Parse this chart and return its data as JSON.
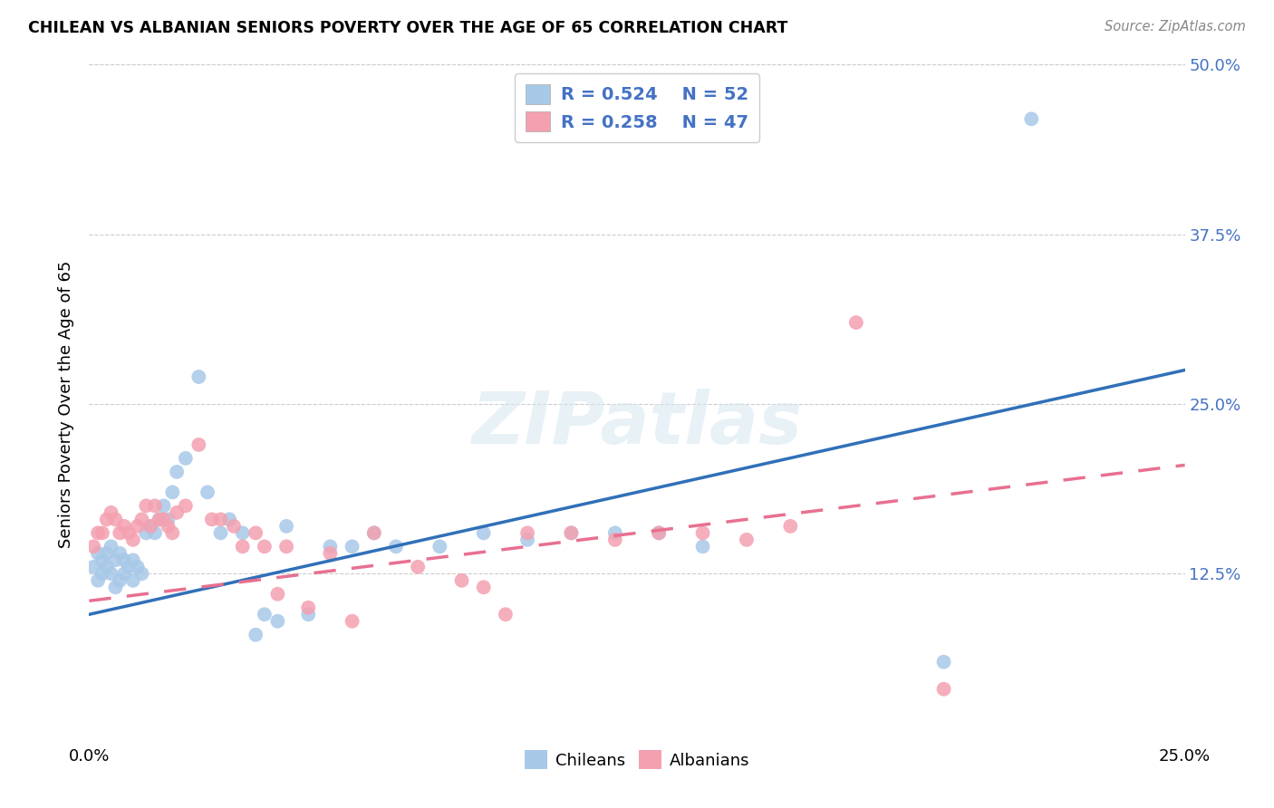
{
  "title": "CHILEAN VS ALBANIAN SENIORS POVERTY OVER THE AGE OF 65 CORRELATION CHART",
  "source": "Source: ZipAtlas.com",
  "ylabel": "Seniors Poverty Over the Age of 65",
  "chilean_color": "#a8c8e8",
  "albanian_color": "#f4a0b0",
  "chilean_line_color": "#3070b8",
  "albanian_line_color": "#e87090",
  "r_chilean": 0.524,
  "n_chilean": 52,
  "r_albanian": 0.258,
  "n_albanian": 47,
  "xlim": [
    0.0,
    0.25
  ],
  "ylim": [
    0.0,
    0.5
  ],
  "watermark": "ZIPatlas",
  "background_color": "#ffffff",
  "grid_color": "#cccccc",
  "chilean_x": [
    0.001,
    0.002,
    0.002,
    0.003,
    0.003,
    0.004,
    0.004,
    0.005,
    0.005,
    0.006,
    0.006,
    0.007,
    0.007,
    0.008,
    0.008,
    0.009,
    0.01,
    0.01,
    0.011,
    0.012,
    0.013,
    0.014,
    0.015,
    0.016,
    0.017,
    0.018,
    0.019,
    0.02,
    0.022,
    0.025,
    0.027,
    0.03,
    0.032,
    0.035,
    0.038,
    0.04,
    0.043,
    0.045,
    0.05,
    0.055,
    0.06,
    0.065,
    0.07,
    0.08,
    0.09,
    0.1,
    0.11,
    0.12,
    0.13,
    0.14,
    0.195,
    0.215
  ],
  "chilean_y": [
    0.13,
    0.14,
    0.12,
    0.135,
    0.125,
    0.14,
    0.13,
    0.145,
    0.125,
    0.135,
    0.115,
    0.14,
    0.12,
    0.135,
    0.125,
    0.13,
    0.135,
    0.12,
    0.13,
    0.125,
    0.155,
    0.16,
    0.155,
    0.165,
    0.175,
    0.165,
    0.185,
    0.2,
    0.21,
    0.27,
    0.185,
    0.155,
    0.165,
    0.155,
    0.08,
    0.095,
    0.09,
    0.16,
    0.095,
    0.145,
    0.145,
    0.155,
    0.145,
    0.145,
    0.155,
    0.15,
    0.155,
    0.155,
    0.155,
    0.145,
    0.06,
    0.46
  ],
  "albanian_x": [
    0.001,
    0.002,
    0.003,
    0.004,
    0.005,
    0.006,
    0.007,
    0.008,
    0.009,
    0.01,
    0.011,
    0.012,
    0.013,
    0.014,
    0.015,
    0.016,
    0.017,
    0.018,
    0.019,
    0.02,
    0.022,
    0.025,
    0.028,
    0.03,
    0.033,
    0.035,
    0.038,
    0.04,
    0.043,
    0.045,
    0.05,
    0.055,
    0.06,
    0.065,
    0.075,
    0.085,
    0.09,
    0.095,
    0.1,
    0.11,
    0.12,
    0.13,
    0.14,
    0.15,
    0.16,
    0.175,
    0.195
  ],
  "albanian_y": [
    0.145,
    0.155,
    0.155,
    0.165,
    0.17,
    0.165,
    0.155,
    0.16,
    0.155,
    0.15,
    0.16,
    0.165,
    0.175,
    0.16,
    0.175,
    0.165,
    0.165,
    0.16,
    0.155,
    0.17,
    0.175,
    0.22,
    0.165,
    0.165,
    0.16,
    0.145,
    0.155,
    0.145,
    0.11,
    0.145,
    0.1,
    0.14,
    0.09,
    0.155,
    0.13,
    0.12,
    0.115,
    0.095,
    0.155,
    0.155,
    0.15,
    0.155,
    0.155,
    0.15,
    0.16,
    0.31,
    0.04
  ]
}
